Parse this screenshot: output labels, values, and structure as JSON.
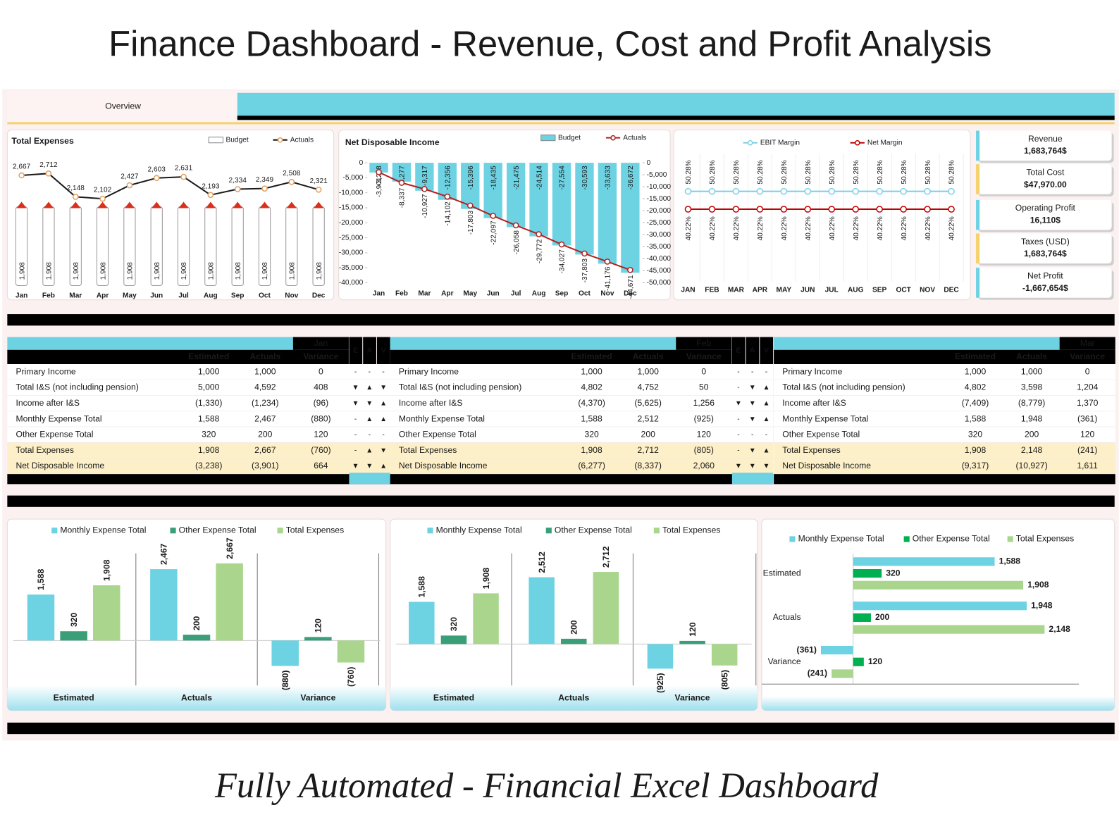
{
  "title": "Finance Dashboard - Revenue, Cost and Profit Analysis",
  "tab": "Overview",
  "footer": "Fully Automated - Financial Excel Dashboard",
  "chart_data": [
    {
      "type": "combo",
      "title": "Total Expenses",
      "categories": [
        "Jan",
        "Feb",
        "Mar",
        "Apr",
        "May",
        "Jun",
        "Jul",
        "Aug",
        "Sep",
        "Oct",
        "Nov",
        "Dec"
      ],
      "series": [
        {
          "name": "Budget",
          "kind": "bar",
          "color": "#ffffff",
          "values": [
            1908,
            1908,
            1908,
            1908,
            1908,
            1908,
            1908,
            1908,
            1908,
            1908,
            1908,
            1908
          ],
          "value_labels": [
            "1,908",
            "1,908",
            "1,908",
            "1,908",
            "1,908",
            "1,908",
            "1,908",
            "1,908",
            "1,908",
            "1,908",
            "1,908",
            "1,908"
          ]
        },
        {
          "name": "Actuals",
          "kind": "line",
          "color": "#1a1a1a",
          "values": [
            2667,
            2712,
            2148,
            2102,
            2427,
            2603,
            2631,
            2193,
            2334,
            2349,
            2508,
            2321
          ],
          "value_labels": [
            "2,667",
            "2,712",
            "2,148",
            "2,102",
            "2,427",
            "2,603",
            "2,631",
            "2,193",
            "2,334",
            "2,349",
            "2,508",
            "2,321"
          ]
        }
      ]
    },
    {
      "type": "combo",
      "title": "Net Disposable Income",
      "categories": [
        "Jan",
        "Feb",
        "Mar",
        "Apr",
        "May",
        "Jun",
        "Jul",
        "Aug",
        "Sep",
        "Oct",
        "Nov",
        "Dec"
      ],
      "ylim": [
        -40000,
        0
      ],
      "yticks": [
        0,
        {
          "value": -5000,
          "label": "-5,000"
        },
        {
          "value": -10000,
          "label": "-10,000"
        },
        {
          "value": -15000,
          "label": "-15,000"
        },
        {
          "value": -20000,
          "label": "-20,000"
        },
        {
          "value": -25000,
          "label": "-25,000"
        },
        {
          "value": -30000,
          "label": "-30,000"
        },
        {
          "value": -35000,
          "label": "-35,000"
        },
        {
          "value": -40000,
          "label": "-40,000"
        }
      ],
      "y2lim": [
        -50000,
        0
      ],
      "y2ticks": [
        0,
        {
          "value": -5000,
          "label": "-5,000"
        },
        {
          "value": -10000,
          "label": "-10,000"
        },
        {
          "value": -15000,
          "label": "-15,000"
        },
        {
          "value": -20000,
          "label": "-20,000"
        },
        {
          "value": -25000,
          "label": "-25,000"
        },
        {
          "value": -30000,
          "label": "-30,000"
        },
        {
          "value": -35000,
          "label": "-35,000"
        },
        {
          "value": -40000,
          "label": "-40,000"
        },
        {
          "value": -45000,
          "label": "-45,000"
        },
        {
          "value": -50000,
          "label": "-50,000"
        }
      ],
      "series": [
        {
          "name": "Budget",
          "kind": "bar",
          "color": "#6dd3e3",
          "values": [
            -3238,
            -6277,
            -9317,
            -12356,
            -15396,
            -18435,
            -21475,
            -24514,
            -27554,
            -30593,
            -33633,
            -36672
          ],
          "value_labels": [
            "-3,238",
            "-6,277",
            "-9,317",
            "-12,356",
            "-15,396",
            "-18,435",
            "-21,475",
            "-24,514",
            "-27,554",
            "-30,593",
            "-33,633",
            "-36,672"
          ]
        },
        {
          "name": "Actuals",
          "kind": "line",
          "color": "#b22222",
          "axis": "y2",
          "values": [
            -3901,
            -8337,
            -10927,
            -14102,
            -17803,
            -22097,
            -26058,
            -29772,
            -34027,
            -37803,
            -41176,
            -44671
          ],
          "value_labels": [
            "-3,901",
            "-8,337",
            "-10,927",
            "-14,102",
            "-17,803",
            "-22,097",
            "-26,058",
            "-29,772",
            "-34,027",
            "-37,803",
            "-41,176",
            "-44,671"
          ]
        }
      ]
    },
    {
      "type": "line",
      "categories": [
        "JAN",
        "FEB",
        "MAR",
        "APR",
        "MAY",
        "JUN",
        "JUL",
        "AUG",
        "SEP",
        "OCT",
        "NOV",
        "DEC"
      ],
      "series": [
        {
          "name": "EBIT Margin",
          "color": "#7fd0e6",
          "values": [
            50.28,
            50.28,
            50.28,
            50.28,
            50.28,
            50.28,
            50.28,
            50.28,
            50.28,
            50.28,
            50.28,
            50.28
          ],
          "value_labels": [
            "50.28%",
            "50.28%",
            "50.28%",
            "50.28%",
            "50.28%",
            "50.28%",
            "50.28%",
            "50.28%",
            "50.28%",
            "50.28%",
            "50.28%",
            "50.28%"
          ]
        },
        {
          "name": "Net Margin",
          "color": "#c00000",
          "values": [
            40.22,
            40.22,
            40.22,
            40.22,
            40.22,
            40.22,
            40.22,
            40.22,
            40.22,
            40.22,
            40.22,
            40.22
          ],
          "value_labels": [
            "40.22%",
            "40.22%",
            "40.22%",
            "40.22%",
            "40.22%",
            "40.22%",
            "40.22%",
            "40.22%",
            "40.22%",
            "40.22%",
            "40.22%",
            "40.22%"
          ]
        }
      ]
    },
    {
      "type": "bar",
      "categories": [
        "Estimated",
        "Actuals",
        "Variance"
      ],
      "series": [
        {
          "name": "Monthly Expense Total",
          "color": "#6dd3e3",
          "values": [
            1588,
            2467,
            -880
          ],
          "value_labels": [
            "1,588",
            "2,467",
            "(880)"
          ]
        },
        {
          "name": "Other Expense Total",
          "color": "#3a9e78",
          "values": [
            320,
            200,
            120
          ]
        },
        {
          "name": "Total Expenses",
          "color": "#a9d68c",
          "values": [
            1908,
            2667,
            -760
          ],
          "value_labels": [
            "1,908",
            "2,667",
            "(760)"
          ]
        }
      ]
    },
    {
      "type": "bar",
      "categories": [
        "Estimated",
        "Actuals",
        "Variance"
      ],
      "series": [
        {
          "name": "Monthly Expense Total",
          "color": "#6dd3e3",
          "values": [
            1588,
            2512,
            -925
          ],
          "value_labels": [
            "1,588",
            "2,512",
            "(925)"
          ]
        },
        {
          "name": "Other Expense Total",
          "color": "#3a9e78",
          "values": [
            320,
            200,
            120
          ]
        },
        {
          "name": "Total Expenses",
          "color": "#a9d68c",
          "values": [
            1908,
            2712,
            -805
          ],
          "value_labels": [
            "1,908",
            "2,712",
            "(805)"
          ]
        }
      ]
    },
    {
      "type": "barh",
      "categories": [
        "Estimated",
        "Actuals",
        "Variance"
      ],
      "series": [
        {
          "name": "Monthly Expense Total",
          "color": "#6dd3e3",
          "values": [
            1588,
            1948,
            -361
          ],
          "value_labels": [
            "1,588",
            "1,948",
            "(361)"
          ]
        },
        {
          "name": "Other Expense Total",
          "color": "#00b050",
          "values": [
            320,
            200,
            120
          ]
        },
        {
          "name": "Total Expenses",
          "color": "#a9d68c",
          "values": [
            1908,
            2148,
            -241
          ],
          "value_labels": [
            "1,908",
            "2,148",
            "(241)"
          ]
        }
      ]
    }
  ],
  "kpis": [
    {
      "label": "Revenue",
      "value": "1,683,764$",
      "accent": "#6dd3e3",
      "label_color": "#1a1a1a"
    },
    {
      "label": "Total Cost",
      "value": "$47,970.00",
      "accent": "#f5d26b",
      "label_color": "#a00000"
    },
    {
      "label": "Operating Profit",
      "value": "16,110$",
      "accent": "#6dd3e3",
      "label_color": "#1a1a1a"
    },
    {
      "label": "Taxes (USD)",
      "value": "1,683,764$",
      "accent": "#f5d26b",
      "label_color": "#a00000"
    },
    {
      "label": "Net Profit",
      "value": "-1,667,654$",
      "accent": "#6dd3e3",
      "label_color": "#1a1a1a"
    }
  ],
  "tables": [
    {
      "month": "Jan",
      "columns": [
        "Estimated",
        "Actuals",
        "Variance"
      ],
      "flags": [
        "E",
        "A",
        "V"
      ],
      "rows": [
        {
          "label": "Primary Income",
          "estimated": "1,000",
          "actuals": "1,000",
          "variance": "0",
          "flags": [
            "-",
            "-",
            "-"
          ]
        },
        {
          "label": "Total I&S (not including pension)",
          "estimated": "5,000",
          "actuals": "4,592",
          "variance": "408",
          "flags": [
            {
              "symbol": "▼",
              "color": "#00a650"
            },
            {
              "symbol": "▲",
              "color": "#e00000"
            },
            {
              "symbol": "▼",
              "color": "#00a650"
            }
          ]
        },
        {
          "label": "Income after I&S",
          "estimated": "(1,330)",
          "actuals": "(1,234)",
          "variance": "(96)",
          "flags": [
            {
              "symbol": "▼",
              "color": "#00a650"
            },
            {
              "symbol": "▼",
              "color": "#00a650"
            },
            {
              "symbol": "▲",
              "color": "#e00000"
            }
          ]
        },
        {
          "label": "Monthly Expense Total",
          "estimated": "1,588",
          "actuals": "2,467",
          "variance": "(880)",
          "flags": [
            "-",
            {
              "symbol": "▲",
              "color": "#e00000"
            },
            {
              "symbol": "▲",
              "color": "#00a650"
            }
          ]
        },
        {
          "label": "Other Expense Total",
          "estimated": "320",
          "actuals": "200",
          "variance": "120",
          "flags": [
            "-",
            "-",
            "-"
          ]
        },
        {
          "label": "Total Expenses",
          "estimated": "1,908",
          "actuals": "2,667",
          "variance": "(760)",
          "flags": [
            "-",
            {
              "symbol": "▲",
              "color": "#e00000"
            },
            {
              "symbol": "▼",
              "color": "#00a650"
            }
          ]
        },
        {
          "label": "Net Disposable Income",
          "estimated": "(3,238)",
          "actuals": "(3,901)",
          "variance": "664",
          "flags": [
            {
              "symbol": "▼",
              "color": "#e00000"
            },
            {
              "symbol": "▼",
              "color": "#e00000"
            },
            {
              "symbol": "▲",
              "color": "#e00000"
            }
          ]
        }
      ]
    },
    {
      "month": "Feb",
      "columns": [
        "Estimated",
        "Actuals",
        "Variance"
      ],
      "flags": [
        "E",
        "A",
        "V"
      ],
      "rows": [
        {
          "label": "Primary Income",
          "estimated": "1,000",
          "actuals": "1,000",
          "variance": "0",
          "flags": [
            "-",
            "-",
            "-"
          ]
        },
        {
          "label": "Total I&S (not including pension)",
          "estimated": "4,802",
          "actuals": "4,752",
          "variance": "50",
          "flags": [
            "-",
            {
              "symbol": "▼",
              "color": "#e00000"
            },
            {
              "symbol": "▲",
              "color": "#e00000"
            }
          ]
        },
        {
          "label": "Income after I&S",
          "estimated": "(4,370)",
          "actuals": "(5,625)",
          "variance": "1,256",
          "flags": [
            {
              "symbol": "▼",
              "color": "#e00000"
            },
            {
              "symbol": "▼",
              "color": "#e00000"
            },
            {
              "symbol": "▲",
              "color": "#e00000"
            }
          ]
        },
        {
          "label": "Monthly Expense Total",
          "estimated": "1,588",
          "actuals": "2,512",
          "variance": "(925)",
          "flags": [
            "-",
            {
              "symbol": "▼",
              "color": "#e00000"
            },
            {
              "symbol": "▲",
              "color": "#e00000"
            }
          ]
        },
        {
          "label": "Other Expense Total",
          "estimated": "320",
          "actuals": "200",
          "variance": "120",
          "flags": [
            "-",
            "-",
            "-"
          ]
        },
        {
          "label": "Total Expenses",
          "estimated": "1,908",
          "actuals": "2,712",
          "variance": "(805)",
          "flags": [
            "-",
            {
              "symbol": "▼",
              "color": "#e00000"
            },
            {
              "symbol": "▲",
              "color": "#e00000"
            }
          ]
        },
        {
          "label": "Net Disposable Income",
          "estimated": "(6,277)",
          "actuals": "(8,337)",
          "variance": "2,060",
          "flags": [
            {
              "symbol": "▼",
              "color": "#e00000"
            },
            {
              "symbol": "▼",
              "color": "#e00000"
            },
            {
              "symbol": "▼",
              "color": "#00a650"
            }
          ]
        }
      ]
    },
    {
      "month": "Mar",
      "columns": [
        "Estimated",
        "Actuals",
        "Variance"
      ],
      "rows": [
        {
          "label": "Primary Income",
          "estimated": "1,000",
          "actuals": "1,000",
          "variance": "0"
        },
        {
          "label": "Total I&S (not including pension)",
          "estimated": "4,802",
          "actuals": "3,598",
          "variance": "1,204"
        },
        {
          "label": "Income after I&S",
          "estimated": "(7,409)",
          "actuals": "(8,779)",
          "variance": "1,370"
        },
        {
          "label": "Monthly Expense Total",
          "estimated": "1,588",
          "actuals": "1,948",
          "variance": "(361)"
        },
        {
          "label": "Other Expense Total",
          "estimated": "320",
          "actuals": "200",
          "variance": "120"
        },
        {
          "label": "Total Expenses",
          "estimated": "1,908",
          "actuals": "2,148",
          "variance": "(241)"
        },
        {
          "label": "Net Disposable Income",
          "estimated": "(9,317)",
          "actuals": "(10,927)",
          "variance": "1,611"
        }
      ]
    }
  ]
}
